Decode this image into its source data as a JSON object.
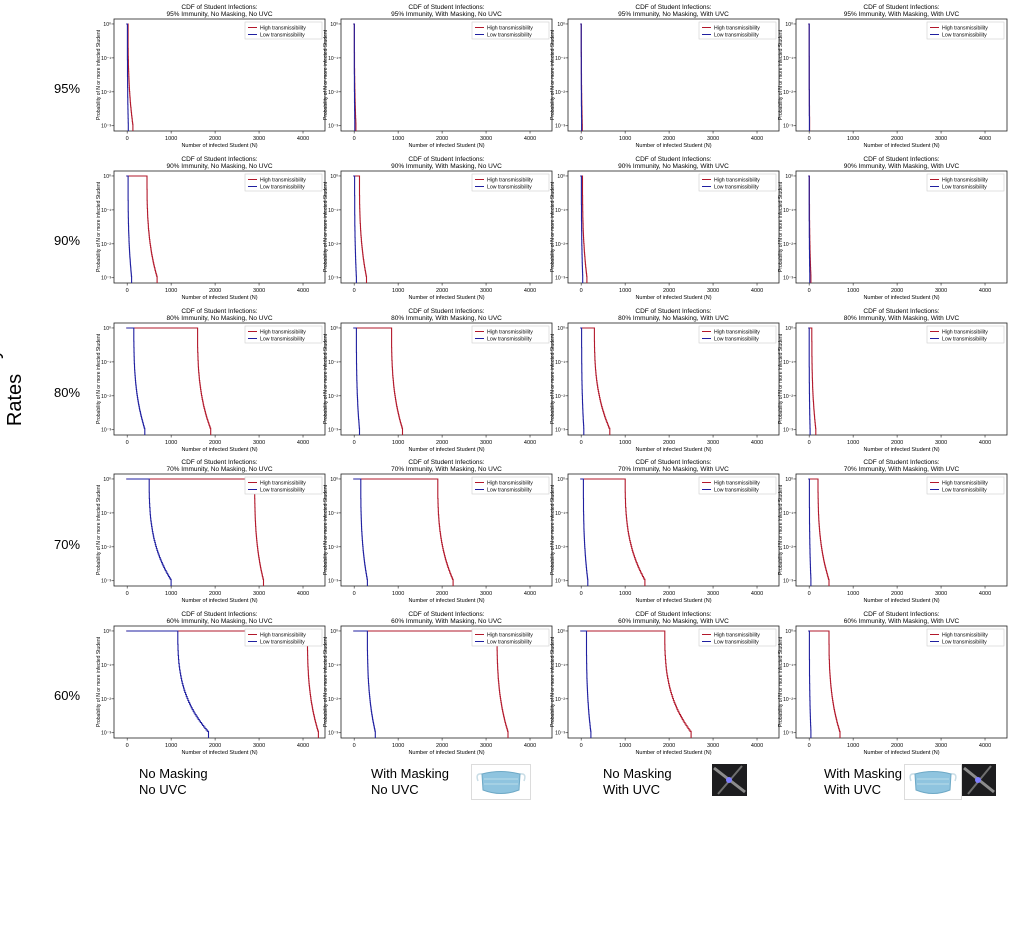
{
  "figure": {
    "immunity_axis_label": "Immunity Rates",
    "row_labels": [
      "95%",
      "90%",
      "80%",
      "70%",
      "60%"
    ],
    "column_labels": [
      {
        "line1": "No Masking",
        "line2": "No UVC"
      },
      {
        "line1": "With Masking",
        "line2": "No UVC"
      },
      {
        "line1": "No Masking",
        "line2": "With UVC"
      },
      {
        "line1": "With Masking",
        "line2": "With UVC"
      }
    ],
    "icons": [
      "surgical-mask-icon",
      "uvc-light-icon"
    ]
  },
  "colors": {
    "high": "#b2182b",
    "low": "#1f1fa0"
  },
  "chart_data": {
    "type": "line",
    "xlabel": "Number of infected Student (N)",
    "ylabel": "Probability of N or more infected Student",
    "x_ticks": [
      0,
      1000,
      2000,
      3000,
      4000
    ],
    "y_scale": "log",
    "y_ticks": [
      "10⁰",
      "10⁻¹",
      "10⁻²",
      "10⁻³"
    ],
    "xlim": [
      -300,
      4500
    ],
    "ylim": [
      0.0007,
      1.4
    ],
    "legend_position": "top-right",
    "series_names": [
      "High transmissibility",
      "Low transmissibility"
    ],
    "panels": [
      {
        "title1": "CDF of  Student Infections:",
        "title2": "95% Immunity, No Masking, No UVC",
        "high": [
          20,
          130
        ],
        "low": [
          5,
          25
        ]
      },
      {
        "title1": "CDF of  Student Infections:",
        "title2": "95% Immunity, With Masking, No UVC",
        "high": [
          5,
          40
        ],
        "low": [
          2,
          15
        ]
      },
      {
        "title1": "CDF of  Student Infections:",
        "title2": "95% Immunity, No Masking, With UVC",
        "high": [
          3,
          25
        ],
        "low": [
          1,
          10
        ]
      },
      {
        "title1": "CDF of  Student Infections:",
        "title2": "95% Immunity, With Masking, With UVC",
        "high": [
          1,
          10
        ],
        "low": [
          0,
          5
        ]
      },
      {
        "title1": "CDF of  Student Infections:",
        "title2": "90% Immunity, No Masking, No UVC",
        "high": [
          450,
          680
        ],
        "low": [
          20,
          100
        ]
      },
      {
        "title1": "CDF of  Student Infections:",
        "title2": "90% Immunity, With Masking, No UVC",
        "high": [
          120,
          280
        ],
        "low": [
          10,
          50
        ]
      },
      {
        "title1": "CDF of  Student Infections:",
        "title2": "90% Immunity, No Masking, With UVC",
        "high": [
          30,
          130
        ],
        "low": [
          5,
          35
        ]
      },
      {
        "title1": "CDF of  Student Infections:",
        "title2": "90% Immunity, With Masking, With UVC",
        "high": [
          5,
          40
        ],
        "low": [
          0,
          15
        ]
      },
      {
        "title1": "CDF of  Student Infections:",
        "title2": "80% Immunity, No Masking, No UVC",
        "high": [
          1600,
          1900
        ],
        "low": [
          150,
          400
        ]
      },
      {
        "title1": "CDF of  Student Infections:",
        "title2": "80% Immunity, With Masking, No UVC",
        "high": [
          850,
          1100
        ],
        "low": [
          50,
          120
        ]
      },
      {
        "title1": "CDF of  Student Infections:",
        "title2": "80% Immunity, No Masking, With UVC",
        "high": [
          300,
          650
        ],
        "low": [
          10,
          60
        ]
      },
      {
        "title1": "CDF of  Student Infections:",
        "title2": "80% Immunity, With Masking, With UVC",
        "high": [
          60,
          150
        ],
        "low": [
          0,
          20
        ]
      },
      {
        "title1": "CDF of  Student Infections:",
        "title2": "70% Immunity, No Masking, No UVC",
        "high": [
          2900,
          3100
        ],
        "low": [
          500,
          1000
        ]
      },
      {
        "title1": "CDF of  Student Infections:",
        "title2": "70% Immunity, With Masking, No UVC",
        "high": [
          1900,
          2250
        ],
        "low": [
          150,
          300
        ]
      },
      {
        "title1": "CDF of  Student Infections:",
        "title2": "70% Immunity, No Masking, With UVC",
        "high": [
          1000,
          1450
        ],
        "low": [
          50,
          150
        ]
      },
      {
        "title1": "CDF of  Student Infections:",
        "title2": "70% Immunity, With Masking, With UVC",
        "high": [
          200,
          450
        ],
        "low": [
          5,
          40
        ]
      },
      {
        "title1": "CDF of  Student Infections:",
        "title2": "60% Immunity, No Masking, No UVC",
        "high": [
          4100,
          4350
        ],
        "low": [
          1150,
          1850
        ]
      },
      {
        "title1": "CDF of  Student Infections:",
        "title2": "60% Immunity, With Masking, No UVC",
        "high": [
          3250,
          3500
        ],
        "low": [
          300,
          480
        ]
      },
      {
        "title1": "CDF of  Student Infections:",
        "title2": "60% Immunity, No Masking, With UVC",
        "high": [
          1900,
          2500
        ],
        "low": [
          120,
          220
        ]
      },
      {
        "title1": "CDF of  Student Infections:",
        "title2": "60% Immunity, With Masking, With UVC",
        "high": [
          450,
          700
        ],
        "low": [
          5,
          40
        ]
      }
    ]
  }
}
